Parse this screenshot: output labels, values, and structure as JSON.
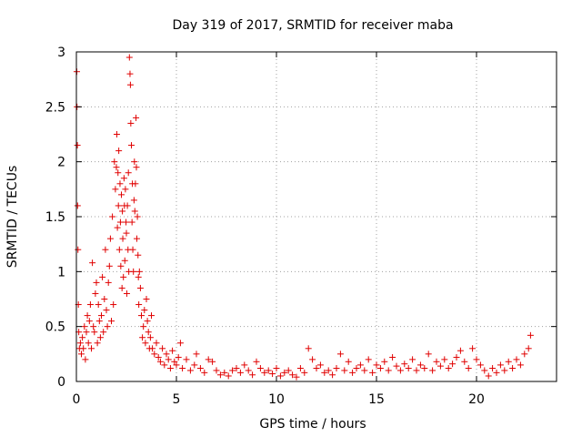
{
  "chart_data": {
    "type": "scatter",
    "title": "Day 319 of 2017, SRMTID for receiver maba",
    "xlabel": "GPS time / hours",
    "ylabel": "SRMTID / TECUs",
    "xlim": [
      0,
      24
    ],
    "ylim": [
      0,
      3
    ],
    "xticks": [
      0,
      5,
      10,
      15,
      20
    ],
    "xtick_labels": [
      "0",
      "5",
      "10",
      "15",
      "20"
    ],
    "yticks": [
      0,
      0.5,
      1,
      1.5,
      2,
      2.5,
      3
    ],
    "ytick_labels": [
      "0",
      "0.5",
      "1",
      "1.5",
      "2",
      "2.5",
      "3"
    ],
    "grid": true,
    "marker": "+",
    "color": "#e00000",
    "series": [
      {
        "name": "SRMTID",
        "x": [
          0.02,
          0.03,
          0.05,
          0.06,
          0.08,
          0.1,
          0.12,
          0.15,
          0.2,
          0.25,
          0.3,
          0.35,
          0.4,
          0.45,
          0.5,
          0.55,
          0.6,
          0.65,
          0.7,
          0.75,
          0.8,
          0.85,
          0.9,
          0.95,
          1.0,
          1.05,
          1.1,
          1.15,
          1.2,
          1.25,
          1.3,
          1.35,
          1.4,
          1.45,
          1.5,
          1.55,
          1.6,
          1.65,
          1.7,
          1.75,
          1.8,
          1.85,
          1.9,
          1.95,
          2.0,
          2.02,
          2.05,
          2.08,
          2.1,
          2.12,
          2.15,
          2.18,
          2.2,
          2.22,
          2.25,
          2.28,
          2.3,
          2.32,
          2.35,
          2.38,
          2.4,
          2.42,
          2.45,
          2.48,
          2.5,
          2.52,
          2.55,
          2.58,
          2.6,
          2.62,
          2.65,
          2.68,
          2.7,
          2.72,
          2.75,
          2.78,
          2.8,
          2.82,
          2.85,
          2.88,
          2.9,
          2.92,
          2.95,
          2.98,
          3.0,
          3.02,
          3.05,
          3.08,
          3.1,
          3.12,
          3.15,
          3.2,
          3.25,
          3.3,
          3.35,
          3.4,
          3.45,
          3.5,
          3.55,
          3.6,
          3.65,
          3.7,
          3.75,
          3.8,
          3.9,
          4.0,
          4.1,
          4.2,
          4.3,
          4.4,
          4.5,
          4.6,
          4.7,
          4.8,
          4.9,
          5.0,
          5.1,
          5.2,
          5.3,
          5.5,
          5.7,
          5.9,
          6.0,
          6.2,
          6.4,
          6.6,
          6.8,
          7.0,
          7.2,
          7.4,
          7.6,
          7.8,
          8.0,
          8.2,
          8.4,
          8.6,
          8.8,
          9.0,
          9.2,
          9.4,
          9.6,
          9.8,
          10.0,
          10.2,
          10.4,
          10.6,
          10.8,
          11.0,
          11.2,
          11.4,
          11.6,
          11.8,
          12.0,
          12.2,
          12.4,
          12.6,
          12.8,
          13.0,
          13.2,
          13.4,
          13.6,
          13.8,
          14.0,
          14.2,
          14.4,
          14.6,
          14.8,
          15.0,
          15.2,
          15.4,
          15.6,
          15.8,
          16.0,
          16.2,
          16.4,
          16.6,
          16.8,
          17.0,
          17.2,
          17.4,
          17.6,
          17.8,
          18.0,
          18.2,
          18.4,
          18.6,
          18.8,
          19.0,
          19.2,
          19.4,
          19.6,
          19.8,
          20.0,
          20.2,
          20.4,
          20.6,
          20.8,
          21.0,
          21.2,
          21.4,
          21.6,
          21.8,
          22.0,
          22.2,
          22.4,
          22.6,
          22.7
        ],
        "y": [
          2.82,
          2.5,
          2.15,
          1.6,
          1.2,
          0.7,
          0.45,
          0.3,
          0.35,
          0.25,
          0.4,
          0.3,
          0.5,
          0.2,
          0.45,
          0.6,
          0.35,
          0.55,
          0.7,
          0.3,
          1.08,
          0.5,
          0.45,
          0.8,
          0.9,
          0.35,
          0.7,
          0.55,
          0.4,
          0.6,
          0.95,
          0.45,
          0.75,
          1.2,
          0.65,
          0.5,
          0.9,
          1.05,
          1.3,
          0.55,
          1.5,
          0.7,
          2.0,
          1.75,
          1.95,
          2.25,
          1.4,
          1.9,
          1.6,
          2.1,
          1.2,
          1.8,
          1.45,
          1.05,
          1.7,
          0.85,
          1.55,
          1.3,
          0.95,
          1.85,
          1.6,
          1.1,
          1.75,
          1.45,
          1.35,
          0.8,
          1.6,
          1.2,
          1.9,
          1.0,
          2.95,
          2.8,
          2.7,
          2.35,
          2.15,
          1.45,
          1.8,
          1.2,
          1.0,
          1.65,
          2.0,
          1.55,
          1.8,
          2.4,
          1.95,
          1.3,
          1.5,
          1.15,
          0.95,
          0.7,
          1.0,
          0.85,
          0.6,
          0.4,
          0.5,
          0.65,
          0.35,
          0.75,
          0.55,
          0.45,
          0.3,
          0.4,
          0.6,
          0.3,
          0.25,
          0.35,
          0.22,
          0.18,
          0.3,
          0.15,
          0.25,
          0.2,
          0.12,
          0.28,
          0.18,
          0.15,
          0.22,
          0.35,
          0.12,
          0.2,
          0.1,
          0.15,
          0.25,
          0.12,
          0.08,
          0.2,
          0.18,
          0.1,
          0.06,
          0.08,
          0.05,
          0.1,
          0.12,
          0.08,
          0.15,
          0.1,
          0.06,
          0.18,
          0.12,
          0.08,
          0.1,
          0.07,
          0.12,
          0.05,
          0.08,
          0.1,
          0.06,
          0.04,
          0.12,
          0.08,
          0.3,
          0.2,
          0.12,
          0.15,
          0.08,
          0.1,
          0.06,
          0.12,
          0.25,
          0.1,
          0.18,
          0.08,
          0.12,
          0.15,
          0.1,
          0.2,
          0.08,
          0.15,
          0.12,
          0.18,
          0.1,
          0.22,
          0.14,
          0.1,
          0.16,
          0.12,
          0.2,
          0.1,
          0.15,
          0.12,
          0.25,
          0.1,
          0.18,
          0.14,
          0.2,
          0.12,
          0.16,
          0.22,
          0.28,
          0.18,
          0.12,
          0.3,
          0.2,
          0.15,
          0.1,
          0.05,
          0.12,
          0.08,
          0.15,
          0.1,
          0.18,
          0.12,
          0.2,
          0.15,
          0.25,
          0.3,
          0.42
        ]
      }
    ]
  }
}
